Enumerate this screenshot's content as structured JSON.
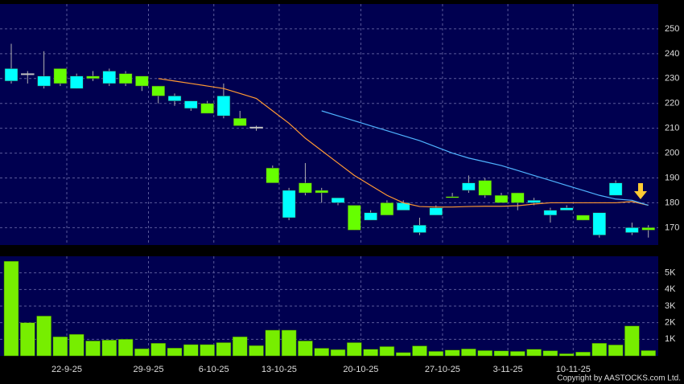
{
  "chart_data": [
    {
      "type": "candlestick",
      "categories": [
        null,
        null,
        null,
        "22-9-25",
        null,
        null,
        null,
        null,
        "29-9-25",
        null,
        null,
        null,
        "6-10-25",
        null,
        null,
        null,
        "13-10-25",
        null,
        null,
        null,
        null,
        "20-10-25",
        null,
        null,
        null,
        null,
        "27-10-25",
        null,
        null,
        null,
        "3-11-25",
        null,
        null,
        null,
        "10-11-25",
        null,
        null,
        null,
        null,
        null
      ],
      "open": [
        229,
        232,
        227,
        234,
        226,
        231,
        228,
        232,
        231,
        227,
        221,
        218,
        220,
        215,
        214,
        210.5,
        194,
        174,
        188,
        185,
        180,
        179,
        173,
        180,
        177,
        168,
        175,
        182.5,
        185,
        189,
        183,
        184,
        180,
        175,
        177,
        175,
        167,
        183,
        168,
        170
      ],
      "high": [
        244,
        233,
        241,
        234,
        232,
        233,
        234,
        233,
        231,
        227,
        224,
        221,
        221,
        228,
        217,
        211,
        195,
        186,
        196,
        186,
        182,
        179,
        177,
        181,
        181,
        174,
        179,
        184,
        191,
        190,
        184,
        184,
        182,
        178,
        179,
        175,
        176,
        189,
        172,
        171
      ],
      "low": [
        228,
        228,
        226,
        227,
        226,
        229,
        227,
        227,
        225,
        220,
        219,
        217,
        216,
        214,
        211,
        209,
        188,
        173,
        183,
        180,
        179,
        169,
        173,
        175,
        177,
        167,
        175,
        182,
        184,
        182,
        180,
        177,
        179,
        172,
        177,
        173,
        166,
        183,
        167,
        166
      ],
      "close": [
        234,
        232,
        231,
        228,
        231,
        230,
        233,
        228,
        227,
        223,
        223,
        221,
        216,
        223,
        211,
        210.5,
        188,
        185,
        184,
        184,
        182,
        169,
        176,
        175,
        180,
        171,
        178,
        182,
        188,
        183,
        180,
        180,
        181,
        177,
        178,
        173,
        176,
        188,
        170,
        169
      ],
      "up_color": "#00ffff",
      "down_color": "#66ff00",
      "doji_color": "#c0c0c0",
      "ma_lines": [
        {
          "color": "#ff9933",
          "values": [
            null,
            null,
            null,
            null,
            null,
            null,
            null,
            null,
            null,
            230,
            229,
            228,
            227,
            226,
            224,
            222,
            217,
            212,
            206,
            201,
            196,
            191,
            187,
            183,
            180,
            178.5,
            178.3,
            178.3,
            178.5,
            178.6,
            178.6,
            178.8,
            179.5,
            180,
            180,
            180,
            180,
            180,
            180.5,
            179
          ]
        },
        {
          "color": "#4fb3ff",
          "values": [
            null,
            null,
            null,
            null,
            null,
            null,
            null,
            null,
            null,
            null,
            null,
            null,
            null,
            null,
            null,
            null,
            null,
            null,
            null,
            217,
            215,
            213,
            211,
            209,
            207,
            205,
            202.5,
            200,
            198,
            196.5,
            195,
            193,
            191,
            189,
            187,
            185,
            183,
            181.5,
            181,
            179
          ]
        }
      ],
      "ylim": [
        163,
        260
      ],
      "yticks": [
        170,
        180,
        190,
        200,
        210,
        220,
        230,
        240,
        250
      ],
      "grid": true
    },
    {
      "type": "bar",
      "values": [
        5700,
        2000,
        2400,
        1150,
        1300,
        900,
        950,
        1000,
        430,
        760,
        470,
        680,
        680,
        800,
        1150,
        620,
        1550,
        1550,
        900,
        460,
        380,
        800,
        400,
        560,
        200,
        600,
        270,
        350,
        420,
        320,
        300,
        270,
        400,
        310,
        130,
        230,
        760,
        660,
        1800,
        320
      ],
      "color": "#77ee00",
      "ylim": [
        0,
        6000
      ],
      "yticks": [
        {
          "value": 1000,
          "label": "1K"
        },
        {
          "value": 2000,
          "label": "2K"
        },
        {
          "value": 3000,
          "label": "3K"
        },
        {
          "value": 4000,
          "label": "4K"
        },
        {
          "value": 5000,
          "label": "5K"
        }
      ],
      "grid": true
    }
  ],
  "copyright": "Copyright by AASTOCKS.com Ltd."
}
